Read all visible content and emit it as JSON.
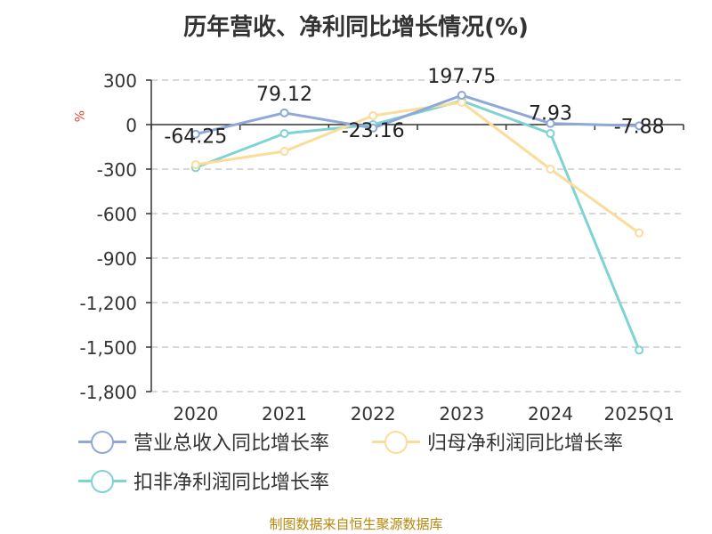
{
  "title": "历年营收、净利同比增长情况(%)",
  "ylabel_unit": "%",
  "source": "制图数据来自恒生聚源数据库",
  "colors": {
    "revenue": "#8fa8d8",
    "parent_profit": "#fbdc9a",
    "deducted_profit": "#7fd3d3",
    "grid": "#cccccc",
    "axis": "#333333"
  },
  "chart_data": {
    "type": "line",
    "title": "历年营收、净利同比增长情况(%)",
    "ylabel": "%",
    "categories": [
      "2020",
      "2021",
      "2022",
      "2023",
      "2024",
      "2025Q1"
    ],
    "ylim": [
      -1800,
      300
    ],
    "yticks": [
      300,
      0,
      -300,
      -600,
      -900,
      -1200,
      -1500,
      -1800
    ],
    "ytick_labels": [
      "300",
      "0",
      "-300",
      "-600",
      "-900",
      "-1,200",
      "-1,500",
      "-1,800"
    ],
    "grid": true,
    "legend_position": "bottom",
    "series": [
      {
        "name": "营业总收入同比增长率",
        "values": [
          -64.25,
          79.12,
          -23.16,
          197.75,
          7.93,
          -7.88
        ],
        "labels": [
          "-64.25",
          "79.12",
          "-23.16",
          "197.75",
          "7.93",
          "-7.88"
        ]
      },
      {
        "name": "归母净利润同比增长率",
        "values": [
          -270,
          -180,
          60,
          150,
          -300,
          -730
        ]
      },
      {
        "name": "扣非净利润同比增长率",
        "values": [
          -290,
          -60,
          0,
          160,
          -60,
          -1520
        ]
      }
    ]
  }
}
